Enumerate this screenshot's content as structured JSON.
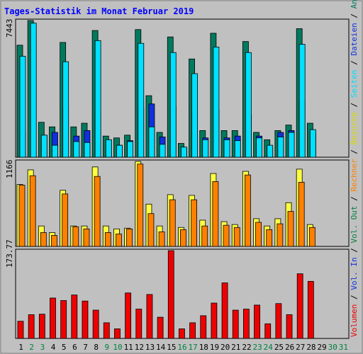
{
  "title": "Tages-Statistik im Monat Februar 2019",
  "colors": {
    "title": "#0000ff",
    "background": "#c0c0c0",
    "plot_bg": "#c0c0c0",
    "anfragen": "#007a5e",
    "dateien": "#1030e0",
    "seiten": "#00e0ff",
    "besuche": "#ffff40",
    "rechner": "#ff8000",
    "volumen": "#ee0000",
    "weekday_label": "#000000",
    "weekend_label": "#008040"
  },
  "right_legend": [
    [
      {
        "text": "Volumen",
        "color": "#ee0000"
      },
      {
        "text": " / ",
        "color": "#000000"
      },
      {
        "text": "Vol. In",
        "color": "#1030e0"
      },
      {
        "text": " / ",
        "color": "#000000"
      },
      {
        "text": "Vol. Out",
        "color": "#008040"
      },
      {
        "text": " / ",
        "color": "#000000"
      },
      {
        "text": "Rechner",
        "color": "#ff8000"
      },
      {
        "text": " / ",
        "color": "#000000"
      },
      {
        "text": "Besuche",
        "color": "#d8d800"
      },
      {
        "text": " / ",
        "color": "#000000"
      },
      {
        "text": "Seiten",
        "color": "#00e0ff"
      },
      {
        "text": " / ",
        "color": "#000000"
      },
      {
        "text": "Dateien",
        "color": "#1030e0"
      },
      {
        "text": " / ",
        "color": "#000000"
      },
      {
        "text": "Anfragen",
        "color": "#007a5e"
      }
    ]
  ],
  "chart_data": {
    "type": "bar",
    "title": "Tages-Statistik im Monat Februar 2019",
    "days": [
      "1",
      "2",
      "3",
      "4",
      "5",
      "6",
      "7",
      "8",
      "9",
      "10",
      "11",
      "12",
      "13",
      "14",
      "15",
      "16",
      "17",
      "18",
      "19",
      "20",
      "21",
      "22",
      "23",
      "24",
      "25",
      "26",
      "27",
      "28",
      "29",
      "30",
      "31"
    ],
    "weekend_days": [
      "2",
      "3",
      "9",
      "10",
      "16",
      "17",
      "23",
      "24",
      "30",
      "31"
    ],
    "panels": [
      {
        "id": "top",
        "max_label": "7443",
        "max": 7443,
        "series": [
          {
            "name": "Anfragen",
            "values": [
              6100,
              7443,
              1900,
              1650,
              6250,
              1650,
              1850,
              6900,
              1150,
              1050,
              1200,
              6950,
              3350,
              1350,
              6550,
              750,
              5350,
              1450,
              6750,
              1450,
              1450,
              6300,
              1350,
              950,
              1450,
              1750,
              7000,
              1850,
              0,
              0,
              0
            ]
          },
          {
            "name": "Dateien",
            "values": [
              1400,
              7250,
              1200,
              1350,
              2700,
              1150,
              1450,
              2500,
              950,
              650,
              900,
              2700,
              2900,
              1100,
              2800,
              500,
              2550,
              1050,
              2600,
              1050,
              1150,
              2300,
              1150,
              550,
              1350,
              1450,
              3100,
              1350,
              0,
              0,
              0
            ]
          },
          {
            "name": "Seiten",
            "values": [
              5500,
              7300,
              1200,
              650,
              5200,
              850,
              800,
              6350,
              950,
              650,
              850,
              6200,
              1650,
              700,
              5700,
              550,
              4550,
              950,
              6000,
              950,
              900,
              5700,
              1050,
              650,
              1100,
              1350,
              6150,
              1500,
              0,
              0,
              0
            ]
          }
        ]
      },
      {
        "id": "middle",
        "max_label": "1166",
        "max": 1166,
        "series": [
          {
            "name": "Besuche",
            "values": [
              850,
              1050,
              280,
              190,
              770,
              280,
              280,
              1090,
              280,
              240,
              250,
              1166,
              580,
              280,
              710,
              260,
              700,
              360,
              1000,
              340,
              300,
              1030,
              380,
              280,
              380,
              600,
              1060,
              300,
              0,
              0,
              0
            ]
          },
          {
            "name": "Rechner",
            "values": [
              840,
              970,
              190,
              150,
              720,
              270,
              240,
              960,
              190,
              170,
              240,
              1130,
              450,
              200,
              640,
              230,
              640,
              280,
              890,
              290,
              260,
              980,
              330,
              230,
              310,
              480,
              880,
              260,
              0,
              0,
              0
            ]
          }
        ]
      },
      {
        "id": "bottom",
        "max_label": "173.77",
        "max": 173.77,
        "series": [
          {
            "name": "Volumen",
            "values": [
              34,
              47,
              48,
              80,
              75,
              86,
              74,
              56,
              31,
              19,
              90,
              58,
              87,
              42,
              173.77,
              19,
              31,
              45,
              70,
              110,
              56,
              58,
              66,
              29,
              69,
              47,
              128,
              113,
              0,
              0,
              0
            ]
          }
        ]
      }
    ]
  }
}
